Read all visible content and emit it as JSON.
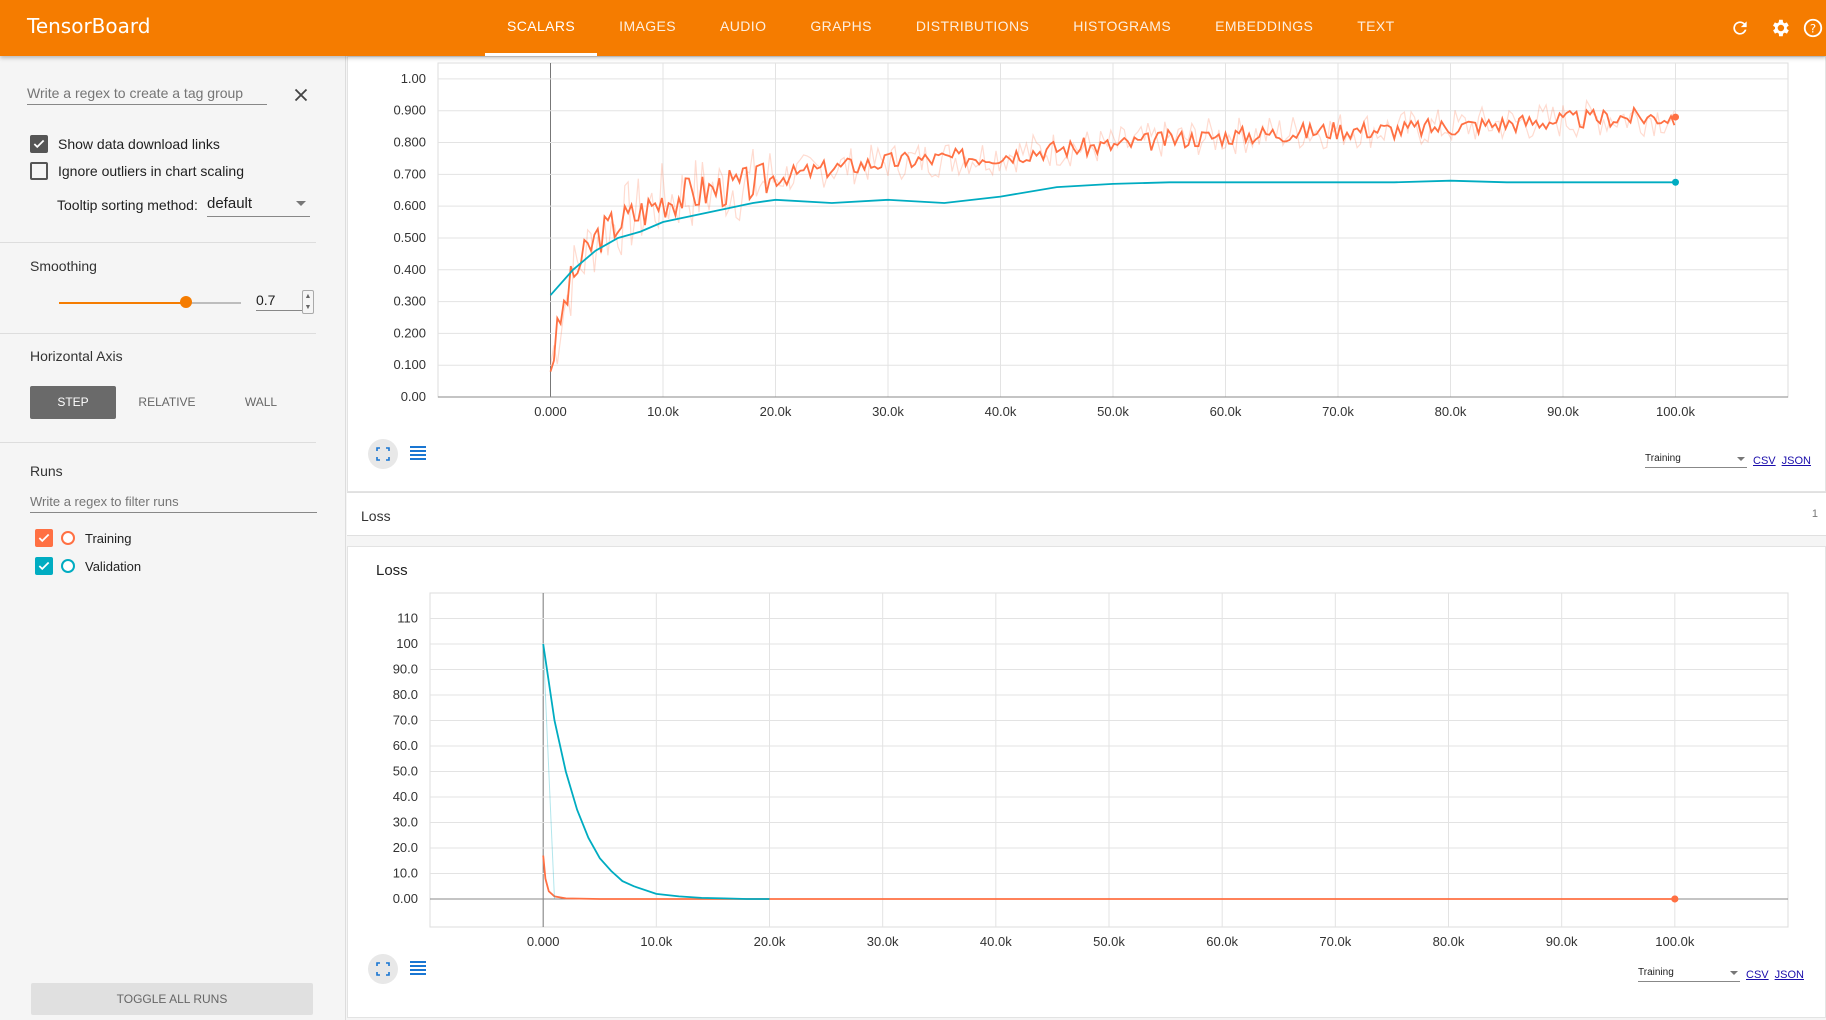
{
  "app": {
    "title": "TensorBoard"
  },
  "tabs": [
    {
      "label": "SCALARS",
      "active": true
    },
    {
      "label": "IMAGES"
    },
    {
      "label": "AUDIO"
    },
    {
      "label": "GRAPHS"
    },
    {
      "label": "DISTRIBUTIONS"
    },
    {
      "label": "HISTOGRAMS"
    },
    {
      "label": "EMBEDDINGS"
    },
    {
      "label": "TEXT"
    }
  ],
  "toolbar_icons": [
    "refresh-icon",
    "settings-icon",
    "help-icon"
  ],
  "sidebar": {
    "tag_regex_placeholder": "Write a regex to create a tag group",
    "show_download_label": "Show data download links",
    "show_download_checked": true,
    "ignore_outliers_label": "Ignore outliers in chart scaling",
    "ignore_outliers_checked": false,
    "tooltip_label": "Tooltip sorting method:",
    "tooltip_value": "default",
    "smoothing_label": "Smoothing",
    "smoothing_value": "0.7",
    "horizontal_axis_label": "Horizontal Axis",
    "axis_options": [
      "STEP",
      "RELATIVE",
      "WALL"
    ],
    "axis_selected": "STEP",
    "runs_label": "Runs",
    "runs_regex_placeholder": "Write a regex to filter runs",
    "runs": [
      {
        "name": "Training",
        "color": "#ff7043",
        "checked": true
      },
      {
        "name": "Validation",
        "color": "#00acc1",
        "checked": true
      }
    ],
    "toggle_all_label": "TOGGLE ALL RUNS"
  },
  "colors": {
    "accent": "#f57c00",
    "training": "#ff7043",
    "validation": "#00acc1"
  },
  "accuracy_card": {
    "download_select": "Training",
    "csv_label": "CSV",
    "json_label": "JSON"
  },
  "loss_group": {
    "title": "Loss",
    "count": "1"
  },
  "loss_card": {
    "title": "Loss",
    "download_select": "Training",
    "csv_label": "CSV",
    "json_label": "JSON"
  },
  "chart_data": [
    {
      "type": "line",
      "title": "",
      "xlabel": "",
      "ylabel": "",
      "xlim": [
        -10000,
        110000
      ],
      "ylim": [
        0,
        1.05
      ],
      "x_ticks": [
        "0.000",
        "10.0k",
        "20.0k",
        "30.0k",
        "40.0k",
        "50.0k",
        "60.0k",
        "70.0k",
        "80.0k",
        "90.0k",
        "100.0k"
      ],
      "y_ticks": [
        "0.00",
        "0.100",
        "0.200",
        "0.300",
        "0.400",
        "0.500",
        "0.600",
        "0.700",
        "0.800",
        "0.900",
        "1.00"
      ],
      "grid": true,
      "series": [
        {
          "name": "Training",
          "color": "#ff7043",
          "x": [
            0,
            1000,
            2000,
            4000,
            6000,
            8000,
            10000,
            14000,
            18000,
            20000,
            25000,
            30000,
            35000,
            40000,
            45000,
            50000,
            55000,
            60000,
            65000,
            70000,
            75000,
            80000,
            85000,
            90000,
            95000,
            100000
          ],
          "y": [
            0.1,
            0.26,
            0.38,
            0.5,
            0.55,
            0.58,
            0.62,
            0.65,
            0.67,
            0.69,
            0.72,
            0.74,
            0.75,
            0.76,
            0.78,
            0.79,
            0.81,
            0.82,
            0.83,
            0.84,
            0.84,
            0.85,
            0.86,
            0.87,
            0.88,
            0.88
          ]
        },
        {
          "name": "Validation",
          "color": "#00acc1",
          "x": [
            0,
            2000,
            4000,
            6000,
            8000,
            10000,
            14000,
            18000,
            20000,
            25000,
            30000,
            35000,
            40000,
            45000,
            50000,
            55000,
            60000,
            65000,
            70000,
            75000,
            80000,
            85000,
            90000,
            95000,
            100000
          ],
          "y": [
            0.32,
            0.4,
            0.46,
            0.5,
            0.52,
            0.55,
            0.58,
            0.61,
            0.62,
            0.61,
            0.62,
            0.61,
            0.63,
            0.66,
            0.67,
            0.675,
            0.675,
            0.675,
            0.675,
            0.675,
            0.68,
            0.675,
            0.675,
            0.675,
            0.675
          ]
        }
      ]
    },
    {
      "type": "line",
      "title": "Loss",
      "xlabel": "",
      "ylabel": "",
      "xlim": [
        -10000,
        110000
      ],
      "ylim": [
        -11,
        120
      ],
      "x_ticks": [
        "0.000",
        "10.0k",
        "20.0k",
        "30.0k",
        "40.0k",
        "50.0k",
        "60.0k",
        "70.0k",
        "80.0k",
        "90.0k",
        "100.0k"
      ],
      "y_ticks": [
        "0.00",
        "10.0",
        "20.0",
        "30.0",
        "40.0",
        "50.0",
        "60.0",
        "70.0",
        "80.0",
        "90.0",
        "100",
        "110"
      ],
      "grid": true,
      "series": [
        {
          "name": "Training",
          "color": "#ff7043",
          "x": [
            0,
            200,
            500,
            1000,
            2000,
            5000,
            20000,
            100000
          ],
          "y": [
            17,
            8,
            3,
            1,
            0.2,
            0,
            0,
            0
          ]
        },
        {
          "name": "Validation",
          "color": "#00acc1",
          "x": [
            0,
            1000,
            2000,
            3000,
            4000,
            5000,
            6000,
            7000,
            8000,
            10000,
            12000,
            14000,
            16000,
            18000,
            20000
          ],
          "y": [
            100,
            70,
            50,
            35,
            24,
            16,
            11,
            7,
            5,
            2,
            1,
            0.4,
            0.2,
            0,
            0
          ]
        }
      ]
    }
  ]
}
